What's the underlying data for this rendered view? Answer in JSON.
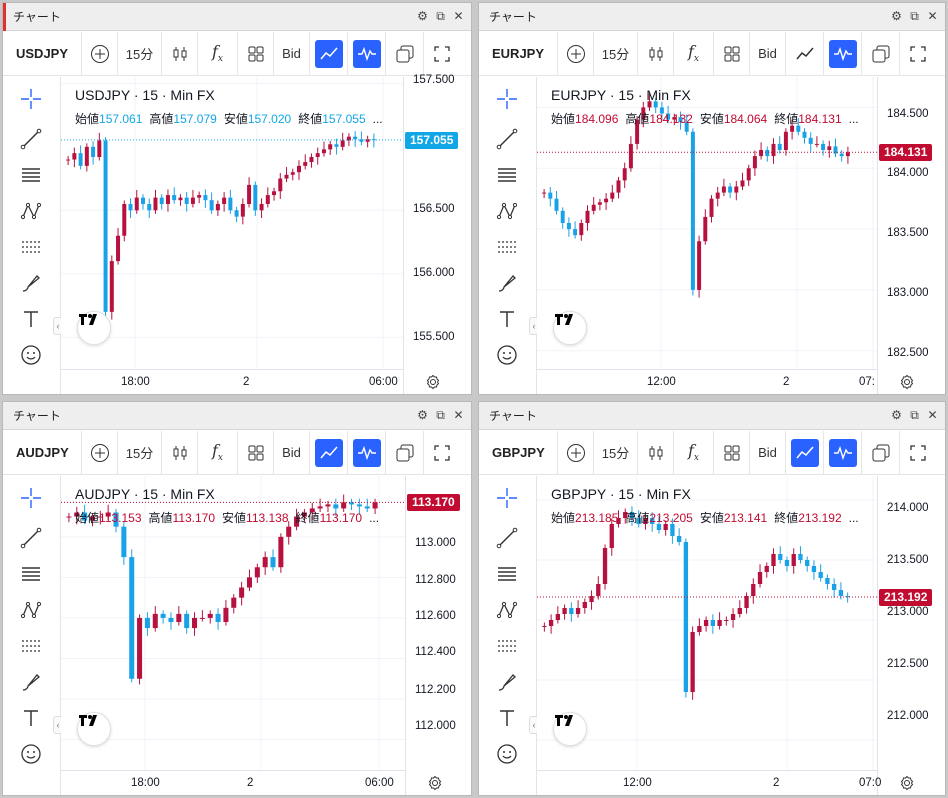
{
  "window_title": "チャート",
  "toolbar": {
    "interval": "15分",
    "price_type": "Bid"
  },
  "colors": {
    "up": "#b7113f",
    "down": "#1aa2e8",
    "accent": "#2962ff",
    "close_tag_red": "#c10b30",
    "close_tag_blue": "#11a6e6"
  },
  "labels": {
    "open": "始値",
    "high": "高値",
    "low": "安値",
    "close": "終値",
    "ellipsis": "..."
  },
  "icons": [
    "crosshair-icon",
    "trendline-icon",
    "fib-icon",
    "pattern-icon",
    "measure-icon",
    "brush-icon",
    "text-icon",
    "emoji-icon"
  ],
  "panes": [
    {
      "symbol": "USDJPY",
      "legend_title": "USDJPY · 15 · Min FX",
      "open": "157.061",
      "high": "157.079",
      "low": "157.020",
      "close": "157.055",
      "ohlc_color": "#11a6e6",
      "last_price": "157.055",
      "last_color": "#11a6e6",
      "y_ticks": [
        "157.500",
        "156.500",
        "156.000",
        "155.500"
      ],
      "x_ticks": [
        "18:00",
        "2",
        "06:00"
      ],
      "chart_data": {
        "type": "candlestick",
        "ylim": [
          155.25,
          157.55
        ],
        "last": 157.055,
        "line": "close",
        "path": [
          156.9,
          156.95,
          156.85,
          157.0,
          156.92,
          157.05,
          155.7,
          156.1,
          156.3,
          156.55,
          156.5,
          156.6,
          156.55,
          156.5,
          156.6,
          156.55,
          156.62,
          156.58,
          156.6,
          156.55,
          156.6,
          156.62,
          156.58,
          156.5,
          156.55,
          156.6,
          156.5,
          156.45,
          156.55,
          156.7,
          156.5,
          156.55,
          156.62,
          156.65,
          156.75,
          156.78,
          156.8,
          156.85,
          156.88,
          156.92,
          156.95,
          156.98,
          157.02,
          157.0,
          157.05,
          157.08,
          157.06,
          157.04,
          157.06,
          157.055
        ]
      }
    },
    {
      "symbol": "EURJPY",
      "legend_title": "EURJPY · 15 · Min FX",
      "open": "184.096",
      "high": "184.132",
      "low": "184.064",
      "close": "184.131",
      "ohlc_color": "#c10b30",
      "last_price": "184.131",
      "last_color": "#c10b30",
      "y_ticks": [
        "184.500",
        "184.000",
        "183.500",
        "183.000",
        "182.500"
      ],
      "x_ticks": [
        "12:00",
        "2",
        "07:"
      ],
      "chart_data": {
        "type": "candlestick",
        "ylim": [
          182.35,
          184.75
        ],
        "last": 184.131,
        "line": "none",
        "path": [
          183.8,
          183.75,
          183.65,
          183.55,
          183.5,
          183.45,
          183.55,
          183.65,
          183.7,
          183.72,
          183.75,
          183.8,
          183.9,
          184.0,
          184.2,
          184.4,
          184.5,
          184.55,
          184.5,
          184.45,
          184.4,
          184.42,
          184.38,
          184.3,
          183.0,
          183.4,
          183.6,
          183.75,
          183.8,
          183.85,
          183.8,
          183.85,
          183.9,
          184.0,
          184.1,
          184.15,
          184.1,
          184.2,
          184.15,
          184.3,
          184.35,
          184.3,
          184.25,
          184.2,
          184.2,
          184.15,
          184.18,
          184.12,
          184.1,
          184.131
        ]
      }
    },
    {
      "symbol": "AUDJPY",
      "legend_title": "AUDJPY · 15 · Min FX",
      "open": "113.153",
      "high": "113.170",
      "low": "113.138",
      "close": "113.170",
      "ohlc_color": "#c10b30",
      "last_price": "113.170",
      "last_color": "#c10b30",
      "y_ticks": [
        "113.000",
        "112.800",
        "112.600",
        "112.400",
        "112.200",
        "112.000"
      ],
      "x_ticks": [
        "18:00",
        "2",
        "06:00"
      ],
      "chart_data": {
        "type": "candlestick",
        "ylim": [
          111.85,
          113.3
        ],
        "last": 113.17,
        "line": "none",
        "path": [
          113.1,
          113.12,
          113.08,
          113.1,
          113.1,
          113.12,
          113.05,
          112.9,
          112.3,
          112.6,
          112.55,
          112.62,
          112.6,
          112.58,
          112.62,
          112.55,
          112.6,
          112.6,
          112.62,
          112.58,
          112.65,
          112.7,
          112.75,
          112.8,
          112.85,
          112.9,
          112.85,
          113.0,
          113.05,
          113.1,
          113.12,
          113.14,
          113.15,
          113.16,
          113.14,
          113.17,
          113.16,
          113.15,
          113.14,
          113.17
        ]
      }
    },
    {
      "symbol": "GBPJPY",
      "legend_title": "GBPJPY · 15 · Min FX",
      "open": "213.185",
      "high": "213.205",
      "low": "213.141",
      "close": "213.192",
      "ohlc_color": "#c10b30",
      "last_price": "213.192",
      "last_color": "#c10b30",
      "y_ticks": [
        "214.000",
        "213.500",
        "213.000",
        "212.500",
        "212.000"
      ],
      "x_ticks": [
        "12:00",
        "2",
        "07:0"
      ],
      "chart_data": {
        "type": "candlestick",
        "ylim": [
          211.75,
          214.2
        ],
        "last": 213.192,
        "line": "none",
        "path": [
          212.95,
          213.0,
          213.05,
          213.1,
          213.05,
          213.1,
          213.15,
          213.2,
          213.3,
          213.6,
          213.8,
          213.85,
          213.9,
          213.85,
          213.8,
          213.85,
          213.8,
          213.75,
          213.8,
          213.7,
          213.65,
          212.4,
          212.9,
          212.95,
          213.0,
          212.95,
          213.0,
          213.0,
          213.05,
          213.1,
          213.2,
          213.3,
          213.4,
          213.45,
          213.55,
          213.5,
          213.45,
          213.55,
          213.5,
          213.45,
          213.4,
          213.35,
          213.3,
          213.25,
          213.2,
          213.192
        ]
      }
    }
  ]
}
